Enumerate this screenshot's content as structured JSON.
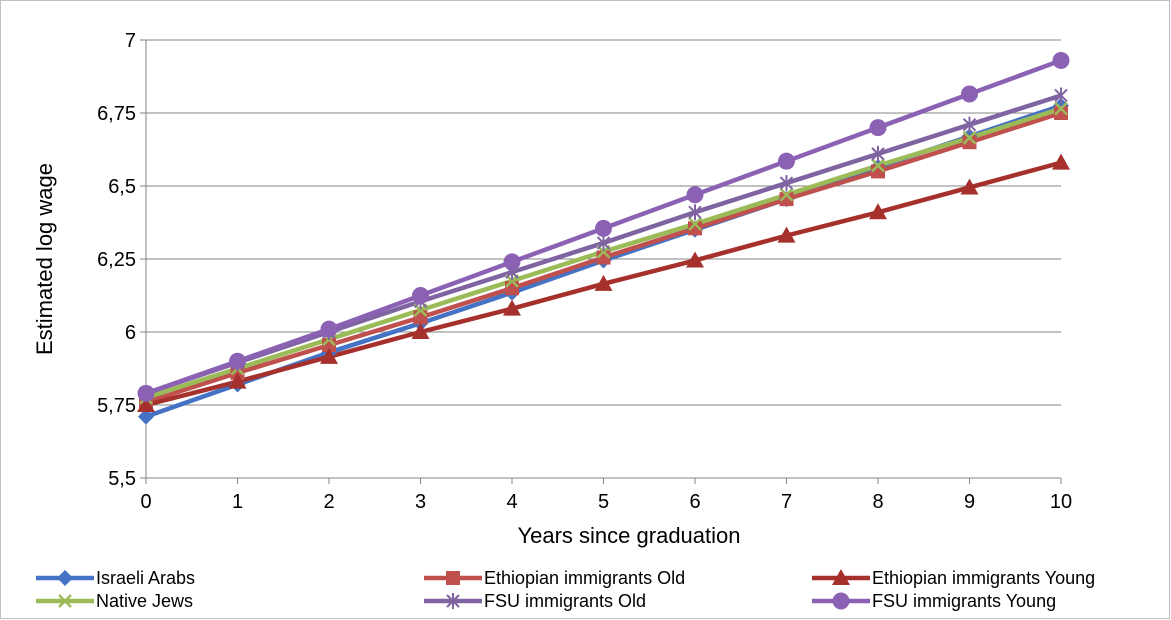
{
  "chart_data": {
    "type": "line",
    "title": "",
    "xlabel": "Years since graduation",
    "ylabel": "Estimated log wage",
    "categories": [
      "0",
      "1",
      "2",
      "3",
      "4",
      "5",
      "6",
      "7",
      "8",
      "9",
      "10"
    ],
    "x": [
      0,
      1,
      2,
      3,
      4,
      5,
      6,
      7,
      8,
      9,
      10
    ],
    "ylim": [
      5.5,
      7
    ],
    "yticks": [
      5.5,
      5.75,
      6,
      6.25,
      6.5,
      6.75,
      7
    ],
    "ytick_labels": [
      "5,5",
      "5,75",
      "6",
      "6,25",
      "6,5",
      "6,75",
      "7"
    ],
    "grid": "horizontal",
    "legend_position": "bottom",
    "series": [
      {
        "name": "Israeli Arabs",
        "color": "#4472c4",
        "marker": "diamond",
        "values": [
          5.71,
          5.82,
          5.93,
          6.03,
          6.135,
          6.245,
          6.35,
          6.455,
          6.565,
          6.67,
          6.775
        ]
      },
      {
        "name": "Ethiopian immigrants Old",
        "color": "#c0504d",
        "marker": "square",
        "values": [
          5.76,
          5.86,
          5.955,
          6.05,
          6.15,
          6.255,
          6.355,
          6.455,
          6.55,
          6.65,
          6.75
        ]
      },
      {
        "name": "Ethiopian immigrants Young",
        "color": "#a5302c",
        "marker": "triangle",
        "values": [
          5.75,
          5.83,
          5.915,
          6.0,
          6.08,
          6.165,
          6.245,
          6.33,
          6.41,
          6.495,
          6.58
        ]
      },
      {
        "name": "Native Jews",
        "color": "#9bbb59",
        "marker": "x",
        "values": [
          5.775,
          5.875,
          5.975,
          6.075,
          6.175,
          6.275,
          6.37,
          6.47,
          6.57,
          6.665,
          6.765
        ]
      },
      {
        "name": "FSU immigrants Old",
        "color": "#8064a2",
        "marker": "star",
        "values": [
          5.79,
          5.895,
          6.0,
          6.105,
          6.205,
          6.305,
          6.41,
          6.51,
          6.61,
          6.71,
          6.81
        ]
      },
      {
        "name": "FSU immigrants Young",
        "color": "#8b62b3",
        "marker": "circle",
        "values": [
          5.79,
          5.9,
          6.01,
          6.125,
          6.24,
          6.355,
          6.47,
          6.585,
          6.7,
          6.815,
          6.93
        ]
      }
    ]
  }
}
